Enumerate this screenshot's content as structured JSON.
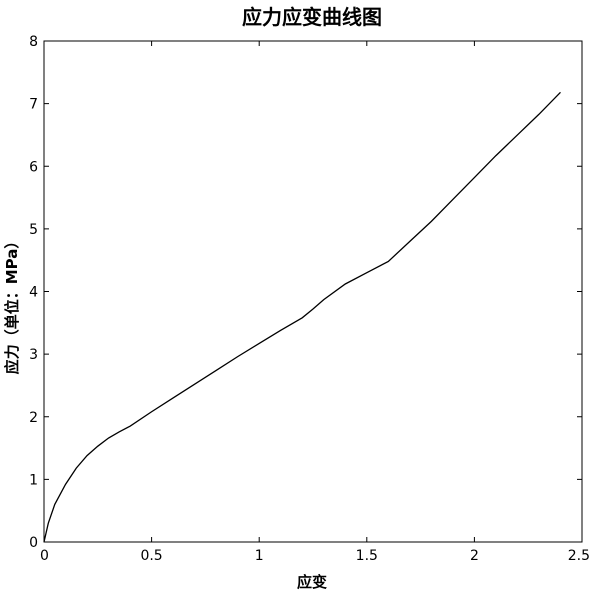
{
  "chart_data": {
    "type": "line",
    "title": "应力应变曲线图",
    "xlabel": "应变",
    "ylabel": "应力（单位：MPa）",
    "xlim": [
      0,
      2.5
    ],
    "ylim": [
      0,
      8
    ],
    "xticks": [
      0,
      0.5,
      1,
      1.5,
      2,
      2.5
    ],
    "xtick_labels": [
      "0",
      "0.5",
      "1",
      "1.5",
      "2",
      "2.5"
    ],
    "yticks": [
      0,
      1,
      2,
      3,
      4,
      5,
      6,
      7,
      8
    ],
    "ytick_labels": [
      "0",
      "1",
      "2",
      "3",
      "4",
      "5",
      "6",
      "7",
      "8"
    ],
    "grid": false,
    "series": [
      {
        "color": "#000000",
        "x": [
          0,
          0.02,
          0.05,
          0.1,
          0.15,
          0.2,
          0.25,
          0.3,
          0.35,
          0.4,
          0.5,
          0.6,
          0.7,
          0.8,
          0.9,
          1.0,
          1.1,
          1.2,
          1.25,
          1.3,
          1.4,
          1.5,
          1.6,
          1.7,
          1.8,
          1.9,
          2.0,
          2.1,
          2.2,
          2.3,
          2.4
        ],
        "y": [
          0,
          0.3,
          0.6,
          0.92,
          1.18,
          1.38,
          1.53,
          1.66,
          1.76,
          1.85,
          2.08,
          2.3,
          2.52,
          2.74,
          2.96,
          3.17,
          3.38,
          3.58,
          3.72,
          3.87,
          4.12,
          4.3,
          4.48,
          4.8,
          5.12,
          5.47,
          5.82,
          6.17,
          6.5,
          6.83,
          7.18
        ]
      }
    ]
  }
}
